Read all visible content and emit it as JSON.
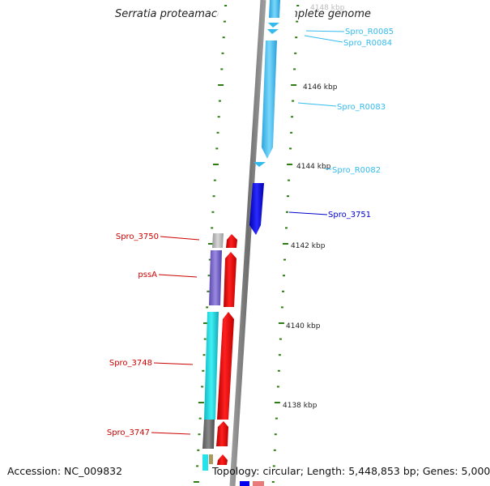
{
  "title": "Serratia proteamaculans 568, complete genome",
  "footer": {
    "accession": "Accession: NC_009832",
    "summary": "Topology: circular; Length: 5,448,853 bp; Genes: 5,000"
  },
  "ruler": [
    "4148 kbp",
    "4146 kbp",
    "4144 kbp",
    "4142 kbp",
    "4140 kbp",
    "4138 kbp"
  ],
  "features_right": [
    {
      "name": "Spro_R0085",
      "color": "#33bbee"
    },
    {
      "name": "Spro_R0084",
      "color": "#33bbee"
    },
    {
      "name": "Spro_R0083",
      "color": "#33bbee"
    },
    {
      "name": "Spro_R0082",
      "color": "#33bbee"
    },
    {
      "name": "Spro_3751",
      "color": "#0000cc"
    }
  ],
  "features_left": [
    {
      "name": "Spro_3750",
      "color": "#cc0000"
    },
    {
      "name": "pssA",
      "color": "#cc0000"
    },
    {
      "name": "Spro_3748",
      "color": "#cc0000"
    },
    {
      "name": "Spro_3747",
      "color": "#cc0000"
    }
  ],
  "colors": {
    "backbone": "#888888",
    "tick": "#2e7d12",
    "rrna": "#4fc8f0",
    "cds_forward": "#ff0000",
    "cds_reverse": "#0000ff",
    "strand_cyan": "#20e0e8",
    "strand_purple": "#7a68c8",
    "strand_gray": "#777777"
  }
}
